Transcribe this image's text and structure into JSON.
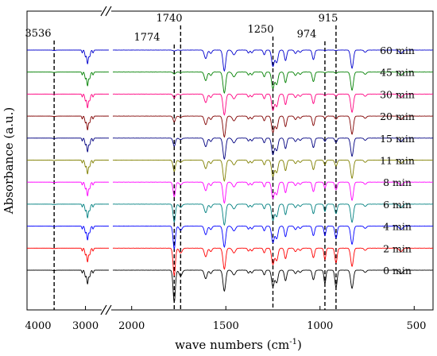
{
  "chart_data": {
    "type": "line",
    "title": "",
    "xlabel": "wave numbers (cm",
    "xlabel_sup": "-1",
    "xlabel_suffix": ")",
    "ylabel": "Absorbance (a.u.)",
    "x_axis": {
      "reversed": true,
      "broken": true,
      "segment_left": {
        "range": [
          4000,
          2600
        ],
        "ticks": [
          4000,
          3000
        ]
      },
      "segment_right": {
        "range": [
          2100,
          400
        ],
        "ticks": [
          2000,
          1500,
          1000,
          500
        ]
      }
    },
    "tick_labels": [
      "4000",
      "3000",
      "2000",
      "1500",
      "1000",
      "500"
    ],
    "reference_lines": [
      {
        "x": 3536,
        "label": "3536"
      },
      {
        "x": 1774,
        "label": "1774"
      },
      {
        "x": 1740,
        "label": "1740"
      },
      {
        "x": 1250,
        "label": "1250"
      },
      {
        "x": 974,
        "label": "974"
      },
      {
        "x": 915,
        "label": "915"
      }
    ],
    "series": [
      {
        "name": "0 min",
        "color": "#000000",
        "epoxide": 1.0
      },
      {
        "name": "2 min",
        "color": "#ff0000",
        "epoxide": 0.85
      },
      {
        "name": "4 min",
        "color": "#0000ff",
        "epoxide": 0.7
      },
      {
        "name": "6 min",
        "color": "#008080",
        "epoxide": 0.55
      },
      {
        "name": "8 min",
        "color": "#ff00ff",
        "epoxide": 0.45
      },
      {
        "name": "11 min",
        "color": "#808000",
        "epoxide": 0.35
      },
      {
        "name": "15 min",
        "color": "#000080",
        "epoxide": 0.25
      },
      {
        "name": "20 min",
        "color": "#800000",
        "epoxide": 0.18
      },
      {
        "name": "30 min",
        "color": "#ff0080",
        "epoxide": 0.12
      },
      {
        "name": "45 min",
        "color": "#008000",
        "epoxide": 0.06
      },
      {
        "name": "60 min",
        "color": "#0000cd",
        "epoxide": 0.03
      }
    ],
    "grid": false,
    "legend": "none"
  }
}
